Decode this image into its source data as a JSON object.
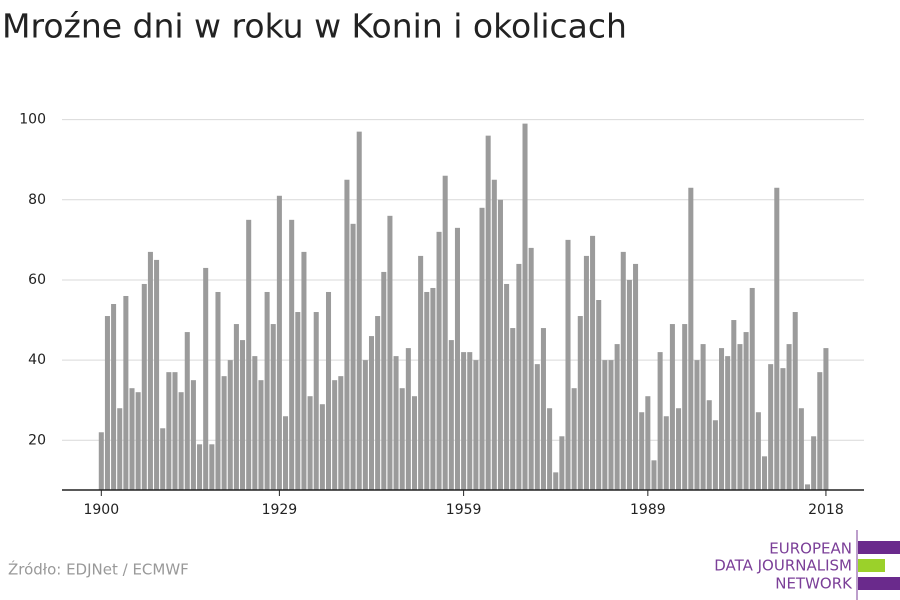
{
  "chart_data": {
    "type": "bar",
    "title": "Mroźne dni w roku w Konin i okolicach",
    "x": [
      1900,
      1901,
      1902,
      1903,
      1904,
      1905,
      1906,
      1907,
      1908,
      1909,
      1910,
      1911,
      1912,
      1913,
      1914,
      1915,
      1916,
      1917,
      1918,
      1919,
      1920,
      1921,
      1922,
      1923,
      1924,
      1925,
      1926,
      1927,
      1928,
      1929,
      1930,
      1931,
      1932,
      1933,
      1934,
      1935,
      1936,
      1937,
      1938,
      1939,
      1940,
      1941,
      1942,
      1943,
      1944,
      1945,
      1946,
      1947,
      1948,
      1949,
      1950,
      1951,
      1952,
      1953,
      1954,
      1955,
      1956,
      1957,
      1958,
      1959,
      1960,
      1961,
      1962,
      1963,
      1964,
      1965,
      1966,
      1967,
      1968,
      1969,
      1970,
      1971,
      1972,
      1973,
      1974,
      1975,
      1976,
      1977,
      1978,
      1979,
      1980,
      1981,
      1982,
      1983,
      1984,
      1985,
      1986,
      1987,
      1988,
      1989,
      1990,
      1991,
      1992,
      1993,
      1994,
      1995,
      1996,
      1997,
      1998,
      1999,
      2000,
      2001,
      2002,
      2003,
      2004,
      2005,
      2006,
      2007,
      2008,
      2009,
      2010,
      2011,
      2012,
      2013,
      2014,
      2015,
      2016,
      2017,
      2018
    ],
    "values": [
      22,
      51,
      54,
      28,
      56,
      33,
      32,
      59,
      67,
      65,
      23,
      37,
      37,
      32,
      47,
      35,
      19,
      63,
      19,
      57,
      36,
      40,
      49,
      45,
      75,
      41,
      35,
      57,
      49,
      81,
      26,
      75,
      52,
      67,
      31,
      52,
      29,
      57,
      35,
      36,
      85,
      74,
      97,
      40,
      46,
      51,
      62,
      76,
      41,
      33,
      43,
      31,
      66,
      57,
      58,
      72,
      86,
      45,
      73,
      42,
      42,
      40,
      78,
      96,
      85,
      80,
      59,
      48,
      64,
      99,
      68,
      39,
      48,
      28,
      12,
      21,
      70,
      33,
      51,
      66,
      71,
      55,
      40,
      40,
      44,
      67,
      60,
      64,
      27,
      31,
      15,
      42,
      26,
      49,
      28,
      49,
      83,
      40,
      44,
      30,
      25,
      43,
      41,
      50,
      44,
      47,
      58,
      27,
      16,
      39,
      83,
      38,
      44,
      52,
      28,
      9,
      21,
      37,
      43
    ],
    "color": "#9b9b9b",
    "xlim": [
      1893.6,
      2024.2
    ],
    "xticks": [
      1900,
      1929,
      1959,
      1989,
      2018
    ],
    "ylim": [
      7.6,
      102
    ],
    "yticks": [
      20,
      40,
      60,
      80,
      100
    ],
    "grid": true
  },
  "source": "Źródło: EDJNet / ECMWF",
  "logo": [
    "EUROPEAN",
    "DATA JOURNALISM",
    "NETWORK"
  ]
}
